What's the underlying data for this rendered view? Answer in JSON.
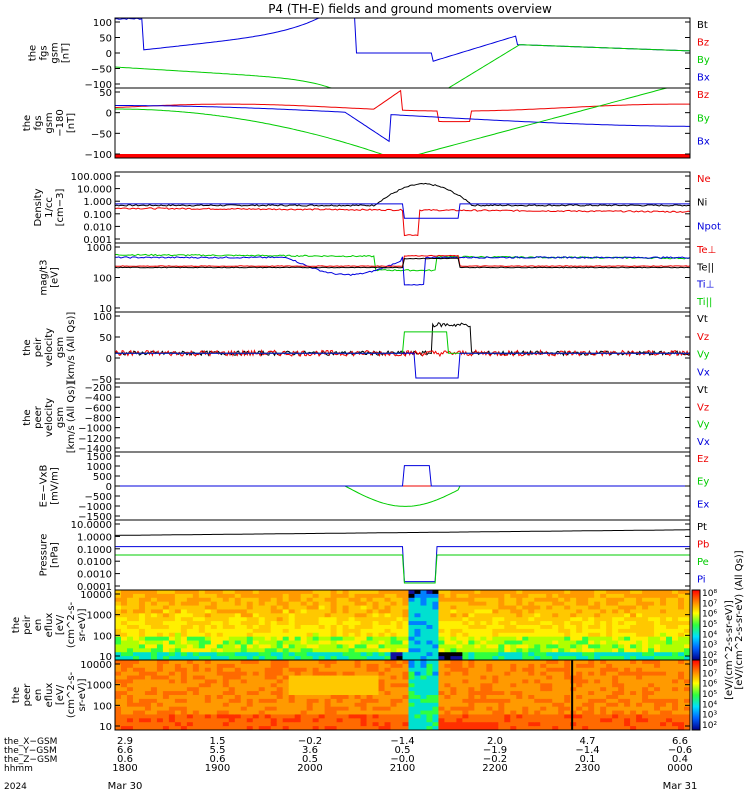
{
  "title": "P4 (TH-E) fields and ground moments overview",
  "date_label": "2024",
  "colors": {
    "black": "#000000",
    "red": "#ee0000",
    "green": "#00cc00",
    "blue": "#0000dd"
  },
  "chart_data": [
    {
      "type": "line",
      "id": "bfgs",
      "ylabel": [
        "the",
        "fgs",
        "gsm",
        "[nT]"
      ],
      "yticks": [
        "100",
        "50",
        "0",
        "−50",
        "−100"
      ],
      "ylim": [
        -100,
        100
      ],
      "legend": [
        {
          "name": "Bt",
          "color": "black"
        },
        {
          "name": "Bz",
          "color": "red"
        },
        {
          "name": "By",
          "color": "green"
        },
        {
          "name": "Bx",
          "color": "blue"
        }
      ]
    },
    {
      "type": "line",
      "id": "bfgs_dc",
      "ylabel": [
        "the",
        "fgs",
        "gsm",
        "−180",
        "[nT]"
      ],
      "yticks": [
        "50",
        "0",
        "−50",
        "−100"
      ],
      "ylim": [
        -125,
        60
      ],
      "legend": [
        {
          "name": "Bz",
          "color": "red"
        },
        {
          "name": "By",
          "color": "green"
        },
        {
          "name": "Bx",
          "color": "blue"
        }
      ]
    },
    {
      "type": "line",
      "id": "density",
      "ylabel": [
        "Density",
        "1/cc",
        "[cm−3]"
      ],
      "yticks": [
        "100.000",
        "10.000",
        "1.000",
        "0.100",
        "0.010",
        "0.001"
      ],
      "ylim": [
        0.0005,
        200
      ],
      "scale": "log",
      "legend": [
        {
          "name": "Ne",
          "color": "red"
        },
        {
          "name": "Ni",
          "color": "black"
        },
        {
          "name": "Npot",
          "color": "blue"
        }
      ]
    },
    {
      "type": "line",
      "id": "temperature",
      "ylabel": [
        "mag/t3",
        "[eV]"
      ],
      "yticks": [
        "1000",
        "100",
        "10"
      ],
      "ylim": [
        3,
        5000
      ],
      "scale": "log",
      "legend": [
        {
          "name": "Te⊥",
          "color": "red"
        },
        {
          "name": "Te||",
          "color": "black"
        },
        {
          "name": "Ti⊥",
          "color": "blue"
        },
        {
          "name": "Ti||",
          "color": "green"
        }
      ]
    },
    {
      "type": "line",
      "id": "vpeir",
      "ylabel": [
        "the",
        "peir",
        "velocity",
        "gsm",
        "[km/s (All Qs)]"
      ],
      "yticks": [
        "100",
        "50",
        "0",
        "−50"
      ],
      "ylim": [
        -80,
        110
      ],
      "legend": [
        {
          "name": "Vt",
          "color": "black"
        },
        {
          "name": "Vz",
          "color": "red"
        },
        {
          "name": "Vy",
          "color": "green"
        },
        {
          "name": "Vx",
          "color": "blue"
        }
      ]
    },
    {
      "type": "line",
      "id": "vpeer",
      "ylabel": [
        "the",
        "peer",
        "velocity",
        "gsm",
        "[km/s (All Qs)]"
      ],
      "yticks": [
        "−200",
        "−400",
        "−600",
        "−800",
        "−1000",
        "−1200",
        "−1400"
      ],
      "ylim": [
        -1450,
        -150
      ],
      "legend": [
        {
          "name": "Vt",
          "color": "black"
        },
        {
          "name": "Vz",
          "color": "red"
        },
        {
          "name": "Vy",
          "color": "green"
        },
        {
          "name": "Vx",
          "color": "blue"
        }
      ]
    },
    {
      "type": "line",
      "id": "efield",
      "ylabel": [
        "E=−VxB",
        "[mV/m]"
      ],
      "yticks": [
        "1500",
        "1000",
        "500",
        "0",
        "−500",
        "−1000",
        "−1500"
      ],
      "ylim": [
        -1600,
        1600
      ],
      "legend": [
        {
          "name": "Ez",
          "color": "red"
        },
        {
          "name": "Ey",
          "color": "green"
        },
        {
          "name": "Ex",
          "color": "blue"
        }
      ]
    },
    {
      "type": "line",
      "id": "pressure",
      "ylabel": [
        "Pressure",
        "[nPa]"
      ],
      "yticks": [
        "10.0000",
        "1.0000",
        "0.1000",
        "0.0100",
        "0.0010",
        "0.0001"
      ],
      "ylim": [
        5e-05,
        20
      ],
      "scale": "log",
      "legend": [
        {
          "name": "Pt",
          "color": "black"
        },
        {
          "name": "Pb",
          "color": "red"
        },
        {
          "name": "Pe",
          "color": "green"
        },
        {
          "name": "Pi",
          "color": "blue"
        }
      ]
    },
    {
      "type": "heatmap",
      "id": "peir_eflux",
      "ylabel": [
        "the",
        "peir",
        "en",
        "eflux",
        "[eV/",
        "(cm^2-s-",
        "sr-eV)]"
      ],
      "yticks": [
        "10000",
        "1000",
        "100",
        "10"
      ]
    },
    {
      "type": "heatmap",
      "id": "peer_eflux",
      "ylabel": [
        "the",
        "peer",
        "en",
        "eflux",
        "[eV/",
        "(cm^2-s-",
        "sr-eV)]"
      ],
      "yticks": [
        "10000",
        "1000",
        "100",
        "10"
      ]
    }
  ],
  "colorbar": {
    "ticks": [
      "10⁸",
      "10⁷",
      "10⁶",
      "10⁵",
      "10⁴",
      "10³",
      "10²"
    ],
    "ticks2": [
      "10⁸",
      "10⁷",
      "10⁶",
      "10⁵",
      "10⁴",
      "10³",
      "10²"
    ],
    "label": "[eV/(cm^2-s-sr-eV)]",
    "label2": "[eV/(cm^2-s-sr-eV) (All Qs)]"
  },
  "xaxis": {
    "rows": [
      {
        "label": "the_X−GSM",
        "values": [
          "2.9",
          "1.5",
          "−0.2",
          "−1.4",
          "2.0",
          "4.7",
          "6.6"
        ]
      },
      {
        "label": "the_Y−GSM",
        "values": [
          "6.6",
          "5.5",
          "3.6",
          "0.5",
          "−1.9",
          "−1.4",
          "−0.6"
        ]
      },
      {
        "label": "the_Z−GSM",
        "values": [
          "0.6",
          "0.6",
          "0.5",
          "−0.0",
          "−0.2",
          "0.1",
          "0.4"
        ]
      },
      {
        "label": "hhmm",
        "values": [
          "1800",
          "1900",
          "2000",
          "2100",
          "2200",
          "2300",
          "0000"
        ]
      }
    ],
    "date_labels": [
      "Mar 30",
      "Mar 31"
    ]
  }
}
